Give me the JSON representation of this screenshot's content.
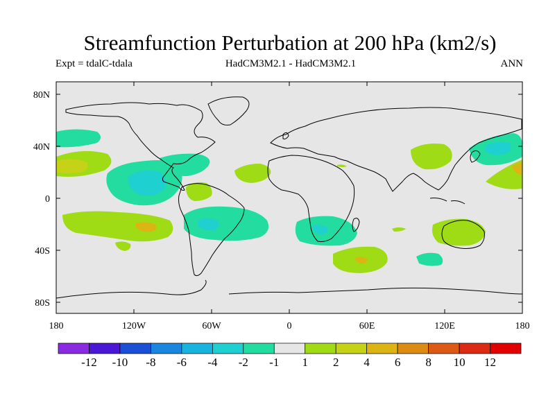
{
  "title": "Streamfunction Perturbation at 200 hPa (km2/s)",
  "subtitle_left": "Expt = tdalC-tdala",
  "subtitle_center": "HadCM3M2.1 - HadCM3M2.1",
  "subtitle_right": "ANN",
  "lat_labels": [
    "80N",
    "40N",
    "0",
    "40S",
    "80S"
  ],
  "lon_labels": [
    "180",
    "120W",
    "60W",
    "0",
    "60E",
    "120E",
    "180"
  ],
  "colorbar": {
    "labels": [
      "-12",
      "-10",
      "-8",
      "-6",
      "-4",
      "-2",
      "-1",
      "1",
      "2",
      "4",
      "6",
      "8",
      "10",
      "12"
    ],
    "colors": [
      "#8a2be2",
      "#4b17d6",
      "#1a4fd6",
      "#1b86e0",
      "#19b3e0",
      "#1fd0d0",
      "#22dca0",
      "#e6e6e6",
      "#9fdc16",
      "#c6d216",
      "#dcb414",
      "#dc8c14",
      "#dc5a14",
      "#dc2a14",
      "#e00000"
    ]
  },
  "colors": {
    "land_bg": "#e6e6e6",
    "coast": "#000000"
  }
}
